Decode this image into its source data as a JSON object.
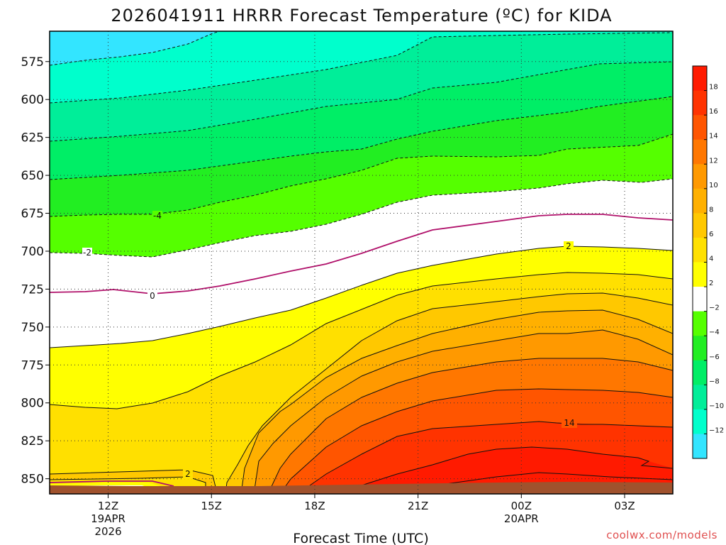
{
  "chart_data": {
    "type": "contour",
    "title": "2026041911 HRRR Forecast Temperature (ºC) for KIDA",
    "xlabel": "Forecast Time (UTC)",
    "ylabel": "",
    "y_axis": {
      "units": "hPa",
      "range": [
        555,
        860
      ],
      "ticks": [
        575,
        600,
        625,
        650,
        675,
        700,
        725,
        750,
        775,
        800,
        825,
        850
      ]
    },
    "x_axis": {
      "units": "forecast hours from 12Z 19APR",
      "range": [
        -1.7,
        16.4
      ],
      "ticks": [
        {
          "hour": 0,
          "label": "12Z",
          "sub1": "19APR",
          "sub2": "2026"
        },
        {
          "hour": 3,
          "label": "15Z",
          "sub1": "",
          "sub2": ""
        },
        {
          "hour": 6,
          "label": "18Z",
          "sub1": "",
          "sub2": ""
        },
        {
          "hour": 9,
          "label": "21Z",
          "sub1": "",
          "sub2": ""
        },
        {
          "hour": 12,
          "label": "00Z",
          "sub1": "20APR",
          "sub2": ""
        },
        {
          "hour": 15,
          "label": "03Z",
          "sub1": "",
          "sub2": ""
        }
      ]
    },
    "colorbar": {
      "tick_labels": [
        "18",
        "16",
        "14",
        "12",
        "10",
        "8",
        "6",
        "4",
        "2",
        "−2",
        "−4",
        "−6",
        "−8",
        "−10",
        "−12"
      ],
      "colors": [
        "#ff1a00",
        "#ff3300",
        "#ff5500",
        "#ff7700",
        "#ff9900",
        "#ffb000",
        "#ffc800",
        "#ffe000",
        "#ffff00",
        "#ffffff",
        "#55ff00",
        "#22ee22",
        "#00ee66",
        "#00ee99",
        "#00ffcc",
        "#33e5ff"
      ]
    },
    "contour_labels": [
      "-4",
      "-2",
      "0",
      "2",
      "2",
      "14"
    ]
  },
  "credit": "coolwx.com/models"
}
